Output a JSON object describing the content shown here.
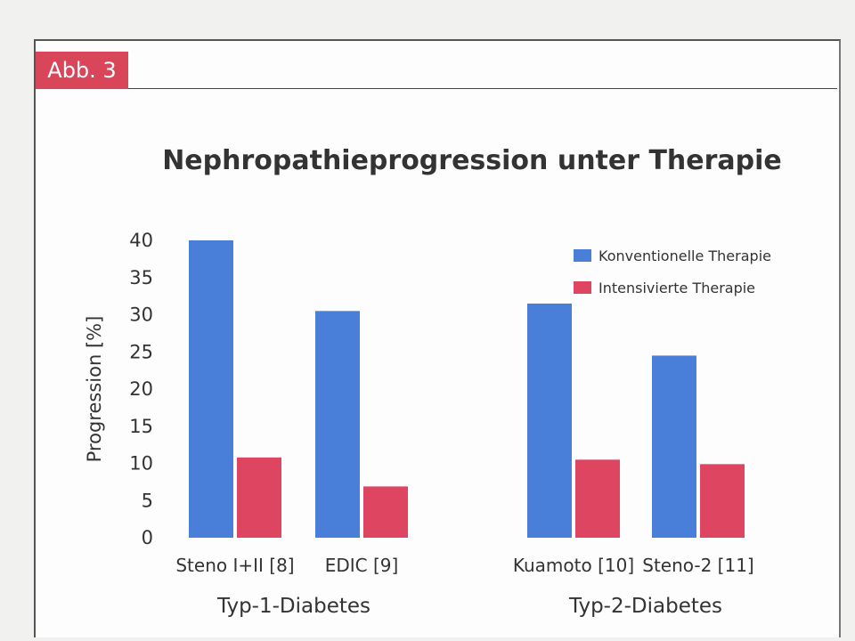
{
  "figure_label": "Abb. 3",
  "chart_data": {
    "type": "bar",
    "title": "Nephropathieprogression  unter Therapie",
    "ylabel": "Progression [%]",
    "xlabel": "",
    "ylim": [
      0,
      40
    ],
    "yticks": [
      0,
      5,
      10,
      15,
      20,
      25,
      30,
      35,
      40
    ],
    "grid": false,
    "legend_placement": "top-right",
    "categories": [
      "Steno I+II [8]",
      "EDIC [9]",
      "Kuamoto [10]",
      "Steno-2 [11]"
    ],
    "groups": [
      {
        "label": "Typ-1-Diabetes",
        "categories": [
          "Steno I+II [8]",
          "EDIC [9]"
        ]
      },
      {
        "label": "Typ-2-Diabetes",
        "categories": [
          "Kuamoto [10]",
          "Steno-2 [11]"
        ]
      }
    ],
    "series": [
      {
        "name": "Konventionelle Therapie",
        "color": "#4a7fd9",
        "values": [
          40,
          30.5,
          31.5,
          24.5
        ]
      },
      {
        "name": "Intensivierte Therapie",
        "color": "#dd4560",
        "values": [
          10.8,
          6.9,
          10.5,
          9.9
        ]
      }
    ]
  }
}
